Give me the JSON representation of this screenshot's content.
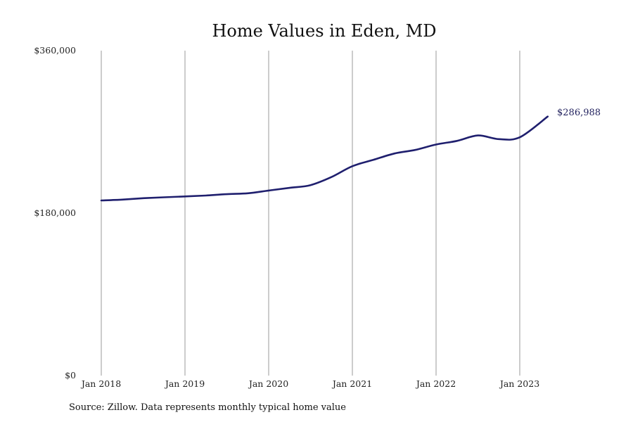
{
  "chart_data": {
    "type": "line",
    "title": "Home Values in Eden, MD",
    "ylim": [
      0,
      360000
    ],
    "yticks": [
      {
        "value": 0,
        "label": "$0"
      },
      {
        "value": 180000,
        "label": "$180,000"
      },
      {
        "value": 360000,
        "label": "$360,000"
      }
    ],
    "xticks": [
      "Jan 2018",
      "Jan 2019",
      "Jan 2020",
      "Jan 2021",
      "Jan 2022",
      "Jan 2023"
    ],
    "grid": "vertical",
    "line_color": "#1f1f6e",
    "series": [
      {
        "points": [
          {
            "date": "2018-01",
            "value": 194000
          },
          {
            "date": "2018-04",
            "value": 195000
          },
          {
            "date": "2018-07",
            "value": 196500
          },
          {
            "date": "2018-10",
            "value": 197500
          },
          {
            "date": "2019-01",
            "value": 198500
          },
          {
            "date": "2019-04",
            "value": 199500
          },
          {
            "date": "2019-07",
            "value": 201000
          },
          {
            "date": "2019-10",
            "value": 202000
          },
          {
            "date": "2020-01",
            "value": 205000
          },
          {
            "date": "2020-04",
            "value": 208000
          },
          {
            "date": "2020-07",
            "value": 211000
          },
          {
            "date": "2020-10",
            "value": 220000
          },
          {
            "date": "2021-01",
            "value": 232000
          },
          {
            "date": "2021-04",
            "value": 239000
          },
          {
            "date": "2021-07",
            "value": 246000
          },
          {
            "date": "2021-10",
            "value": 250000
          },
          {
            "date": "2022-01",
            "value": 256000
          },
          {
            "date": "2022-04",
            "value": 260000
          },
          {
            "date": "2022-07",
            "value": 266000
          },
          {
            "date": "2022-10",
            "value": 262000
          },
          {
            "date": "2023-01",
            "value": 264000
          },
          {
            "date": "2023-05",
            "value": 286988
          }
        ]
      }
    ],
    "end_label": "$286,988"
  },
  "footer": {
    "source": "Source: Zillow. Data represents monthly typical home value"
  }
}
